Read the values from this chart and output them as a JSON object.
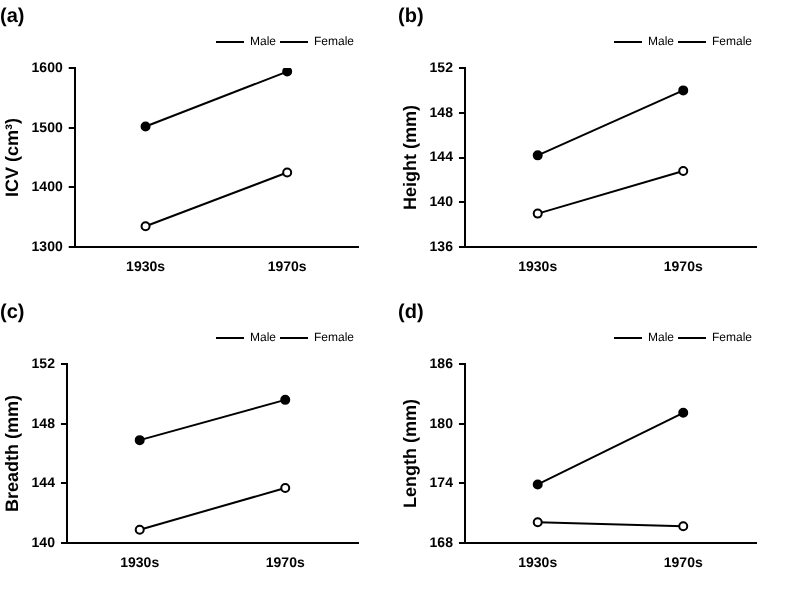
{
  "chart_data": [
    {
      "type": "line",
      "title": "(a)",
      "ylabel": "ICV (cm³)",
      "categories": [
        "1930s",
        "1970s"
      ],
      "ylim": [
        1300,
        1600
      ],
      "yticks": [
        1300,
        1400,
        1500,
        1600
      ],
      "legend": "top right",
      "marker": "circle",
      "grid": false,
      "series": [
        {
          "name": "Male",
          "color": "#000000",
          "values": [
            1502,
            1594
          ]
        },
        {
          "name": "Female",
          "color": "#000000",
          "values": [
            1335,
            1425
          ]
        }
      ]
    },
    {
      "type": "line",
      "title": "(b)",
      "ylabel": "Height (mm)",
      "categories": [
        "1930s",
        "1970s"
      ],
      "ylim": [
        136,
        152
      ],
      "yticks": [
        136,
        140,
        144,
        148,
        152
      ],
      "legend": "top right",
      "marker": "circle",
      "grid": false,
      "series": [
        {
          "name": "Male",
          "color": "#000000",
          "values": [
            144.2,
            150.0
          ]
        },
        {
          "name": "Female",
          "color": "#000000",
          "values": [
            139.0,
            142.8
          ]
        }
      ]
    },
    {
      "type": "line",
      "title": "(c)",
      "ylabel": "Breadth (mm)",
      "categories": [
        "1930s",
        "1970s"
      ],
      "ylim": [
        140,
        152
      ],
      "yticks": [
        140,
        144,
        148,
        152
      ],
      "legend": "top right",
      "marker": "circle",
      "grid": false,
      "series": [
        {
          "name": "Male",
          "color": "#000000",
          "values": [
            146.9,
            149.6
          ]
        },
        {
          "name": "Female",
          "color": "#000000",
          "values": [
            140.9,
            143.7
          ]
        }
      ]
    },
    {
      "type": "line",
      "title": "(d)",
      "ylabel": "Length (mm)",
      "categories": [
        "1930s",
        "1970s"
      ],
      "ylim": [
        168,
        186
      ],
      "yticks": [
        168,
        174,
        180,
        186
      ],
      "legend": "top right",
      "marker": "circle",
      "grid": false,
      "series": [
        {
          "name": "Male",
          "color": "#000000",
          "values": [
            173.9,
            181.1
          ]
        },
        {
          "name": "Female",
          "color": "#000000",
          "values": [
            170.1,
            169.7
          ]
        }
      ]
    }
  ]
}
